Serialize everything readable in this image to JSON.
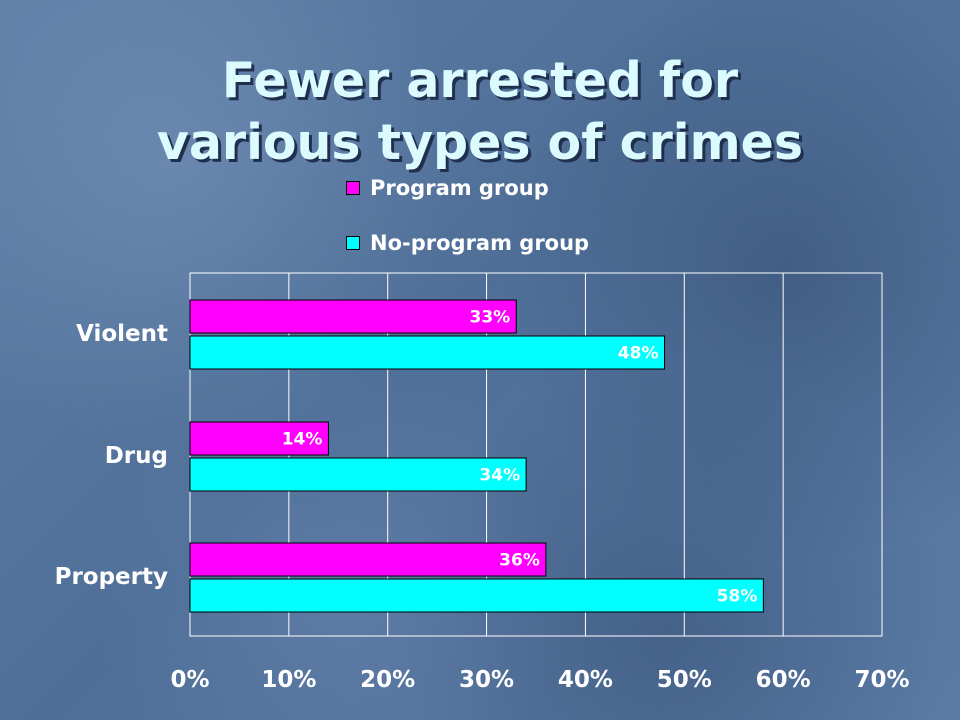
{
  "slide": {
    "title_line_1": "Fewer arrested for",
    "title_line_2": "various types of crimes"
  },
  "chart_data": {
    "type": "bar",
    "orientation": "horizontal",
    "title": "",
    "xlabel": "",
    "ylabel": "",
    "categories": [
      "Violent",
      "Drug",
      "Property"
    ],
    "series": [
      {
        "name": "Program group",
        "values": [
          33,
          14,
          36
        ],
        "labels": [
          "33%",
          "14%",
          "36%"
        ],
        "color": "#ff00ff"
      },
      {
        "name": "No-program group",
        "values": [
          48,
          34,
          58
        ],
        "labels": [
          "48%",
          "34%",
          "58%"
        ],
        "color": "#00ffff"
      }
    ],
    "xlim": [
      0,
      70
    ],
    "x_ticks": [
      "0%",
      "10%",
      "20%",
      "30%",
      "40%",
      "50%",
      "60%",
      "70%"
    ],
    "grid": true,
    "legend": "top",
    "gridline_color": "#ffffff",
    "border_color": "#ffffff"
  }
}
